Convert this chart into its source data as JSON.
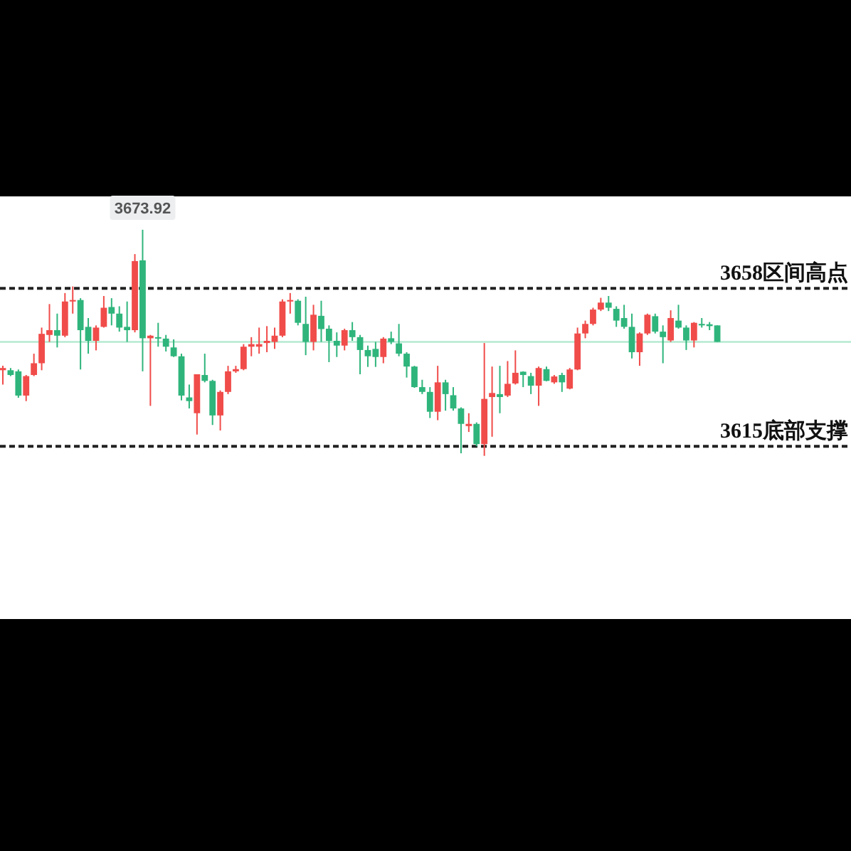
{
  "chart_data": {
    "type": "candlestick",
    "categories": [
      null,
      null,
      null,
      null,
      null,
      null,
      null,
      null,
      null,
      null,
      null,
      null,
      null,
      null,
      null,
      null,
      null,
      null,
      null,
      null,
      null,
      null,
      null,
      null,
      null,
      null,
      null,
      null,
      null,
      null,
      null,
      null,
      null,
      null,
      null,
      null,
      null,
      null,
      null,
      null,
      null,
      null,
      null,
      null,
      null,
      null,
      null,
      null,
      null,
      null,
      null,
      null,
      null,
      null,
      null,
      null,
      null,
      null,
      null,
      null,
      null,
      null,
      null,
      null,
      null,
      null,
      null,
      null,
      null,
      null,
      null,
      null,
      null,
      null,
      null,
      null,
      null,
      null,
      null,
      null,
      null,
      null,
      null,
      null,
      null,
      null,
      null,
      null,
      null,
      null,
      null,
      null,
      null
    ],
    "ohlc": [
      [
        3635.7,
        3636.9,
        3631.8,
        3636.3
      ],
      [
        3635.7,
        3636.3,
        3634.1,
        3634.4
      ],
      [
        3635.4,
        3635.9,
        3628.2,
        3628.8
      ],
      [
        3628.8,
        3634.4,
        3627.3,
        3634.1
      ],
      [
        3634.4,
        3640.2,
        3634.1,
        3637.6
      ],
      [
        3637.6,
        3647.3,
        3635.7,
        3645.6
      ],
      [
        3645.3,
        3653.7,
        3643.4,
        3646.6
      ],
      [
        3646.6,
        3651.1,
        3641.9,
        3645.1
      ],
      [
        3645.1,
        3656.7,
        3644.7,
        3654.4
      ],
      [
        3654.4,
        3658.5,
        3651.1,
        3654.8
      ],
      [
        3654.8,
        3655.3,
        3635.9,
        3646.6
      ],
      [
        3647.5,
        3649.9,
        3640.2,
        3643.7
      ],
      [
        3643.7,
        3647.9,
        3641.1,
        3647.3
      ],
      [
        3647.5,
        3655.9,
        3647.3,
        3652.7
      ],
      [
        3652.9,
        3655.3,
        3647.9,
        3651.1
      ],
      [
        3651.1,
        3653.1,
        3646.2,
        3647.3
      ],
      [
        3647.5,
        3654.4,
        3643.4,
        3646.6
      ],
      [
        3646.6,
        3667.3,
        3646.0,
        3665.4
      ],
      [
        3665.6,
        3673.92,
        3635.4,
        3644.4
      ],
      [
        3644.4,
        3645.3,
        3626.0,
        3645.1
      ],
      [
        3644.7,
        3648.6,
        3642.1,
        3644.3
      ],
      [
        3644.3,
        3645.3,
        3640.8,
        3642.1
      ],
      [
        3641.9,
        3644.1,
        3639.3,
        3639.5
      ],
      [
        3639.5,
        3640.2,
        3627.5,
        3628.8
      ],
      [
        3628.3,
        3631.8,
        3625.3,
        3627.3
      ],
      [
        3624.0,
        3634.6,
        3618.2,
        3634.6
      ],
      [
        3634.4,
        3640.2,
        3632.4,
        3632.8
      ],
      [
        3632.8,
        3633.1,
        3620.8,
        3623.4
      ],
      [
        3623.4,
        3630.2,
        3619.3,
        3629.8
      ],
      [
        3629.8,
        3636.9,
        3629.2,
        3635.4
      ],
      [
        3635.4,
        3636.9,
        3635.0,
        3636.0
      ],
      [
        3636.0,
        3642.8,
        3635.7,
        3642.1
      ],
      [
        3642.1,
        3644.7,
        3639.5,
        3642.8
      ],
      [
        3642.1,
        3647.3,
        3640.2,
        3642.8
      ],
      [
        3643.1,
        3647.7,
        3640.6,
        3643.7
      ],
      [
        3643.4,
        3647.3,
        3641.5,
        3645.1
      ],
      [
        3645.1,
        3655.0,
        3644.7,
        3654.4
      ],
      [
        3654.4,
        3656.7,
        3651.1,
        3654.8
      ],
      [
        3654.6,
        3655.0,
        3647.9,
        3648.6
      ],
      [
        3648.3,
        3655.7,
        3639.8,
        3643.4
      ],
      [
        3643.4,
        3653.5,
        3641.1,
        3650.8
      ],
      [
        3650.5,
        3654.6,
        3643.4,
        3646.9
      ],
      [
        3647.0,
        3647.9,
        3637.9,
        3643.7
      ],
      [
        3643.7,
        3646.0,
        3639.3,
        3642.4
      ],
      [
        3642.4,
        3647.0,
        3641.1,
        3646.6
      ],
      [
        3646.6,
        3648.8,
        3643.7,
        3644.7
      ],
      [
        3644.7,
        3645.3,
        3634.6,
        3641.2
      ],
      [
        3641.2,
        3642.4,
        3636.6,
        3639.5
      ],
      [
        3641.5,
        3643.4,
        3636.6,
        3639.3
      ],
      [
        3639.3,
        3644.7,
        3637.6,
        3644.3
      ],
      [
        3644.4,
        3646.2,
        3642.8,
        3643.4
      ],
      [
        3643.0,
        3648.3,
        3639.5,
        3640.2
      ],
      [
        3640.2,
        3640.6,
        3633.7,
        3636.7
      ],
      [
        3636.7,
        3636.9,
        3630.9,
        3631.1
      ],
      [
        3631.1,
        3633.1,
        3629.2,
        3629.8
      ],
      [
        3629.8,
        3631.1,
        3622.7,
        3624.4
      ],
      [
        3624.4,
        3636.9,
        3622.1,
        3632.4
      ],
      [
        3632.4,
        3633.1,
        3624.7,
        3629.2
      ],
      [
        3628.9,
        3631.1,
        3624.7,
        3625.3
      ],
      [
        3625.3,
        3625.6,
        3613.1,
        3621.1
      ],
      [
        3620.5,
        3624.0,
        3618.9,
        3621.1
      ],
      [
        3621.1,
        3621.5,
        3615.0,
        3615.6
      ],
      [
        3615.6,
        3643.1,
        3612.4,
        3627.9
      ],
      [
        3628.4,
        3636.7,
        3617.6,
        3629.5
      ],
      [
        3629.2,
        3636.9,
        3624.0,
        3628.4
      ],
      [
        3628.8,
        3638.2,
        3628.4,
        3632.0
      ],
      [
        3632.1,
        3641.1,
        3631.8,
        3635.0
      ],
      [
        3635.3,
        3635.4,
        3631.1,
        3634.4
      ],
      [
        3634.1,
        3635.0,
        3629.2,
        3631.5
      ],
      [
        3631.5,
        3636.7,
        3626.0,
        3636.3
      ],
      [
        3636.0,
        3636.7,
        3632.7,
        3632.8
      ],
      [
        3632.4,
        3634.4,
        3632.0,
        3634.0
      ],
      [
        3634.4,
        3635.0,
        3629.8,
        3632.4
      ],
      [
        3630.7,
        3636.3,
        3630.5,
        3635.9
      ],
      [
        3635.9,
        3647.3,
        3635.7,
        3645.7
      ],
      [
        3645.7,
        3649.2,
        3644.4,
        3648.3
      ],
      [
        3648.3,
        3652.7,
        3647.9,
        3652.2
      ],
      [
        3652.2,
        3655.4,
        3651.8,
        3654.1
      ],
      [
        3654.1,
        3655.9,
        3651.8,
        3652.7
      ],
      [
        3652.4,
        3653.1,
        3647.5,
        3649.2
      ],
      [
        3649.9,
        3653.5,
        3647.0,
        3647.5
      ],
      [
        3647.5,
        3651.1,
        3638.9,
        3640.6
      ],
      [
        3640.6,
        3646.0,
        3636.9,
        3645.7
      ],
      [
        3645.7,
        3651.1,
        3645.3,
        3650.8
      ],
      [
        3650.4,
        3651.1,
        3645.7,
        3646.2
      ],
      [
        3646.2,
        3647.9,
        3637.6,
        3644.7
      ],
      [
        3643.8,
        3652.0,
        3643.4,
        3649.9
      ],
      [
        3649.2,
        3653.5,
        3647.0,
        3647.3
      ],
      [
        3647.3,
        3647.9,
        3641.2,
        3643.8
      ],
      [
        3643.8,
        3648.8,
        3641.9,
        3648.6
      ],
      [
        3648.3,
        3649.9,
        3647.3,
        3647.9
      ],
      [
        3648.2,
        3648.8,
        3646.6,
        3647.7
      ],
      [
        3647.9,
        3647.9,
        3643.4,
        3643.4
      ]
    ],
    "colors": [
      "#f04c4a",
      "#2fb57c",
      "#2fb57c",
      "#f04c4a",
      "#f04c4a",
      "#f04c4a",
      "#f04c4a",
      "#2fb57c",
      "#f04c4a",
      "#f04c4a",
      "#2fb57c",
      "#2fb57c",
      "#f04c4a",
      "#f04c4a",
      "#2fb57c",
      "#2fb57c",
      "#2fb57c",
      "#f04c4a",
      "#2fb57c",
      "#f04c4a",
      "#2fb57c",
      "#2fb57c",
      "#2fb57c",
      "#2fb57c",
      "#2fb57c",
      "#f04c4a",
      "#2fb57c",
      "#2fb57c",
      "#f04c4a",
      "#f04c4a",
      "#f04c4a",
      "#f04c4a",
      "#f04c4a",
      "#f04c4a",
      "#f04c4a",
      "#f04c4a",
      "#f04c4a",
      "#f04c4a",
      "#2fb57c",
      "#2fb57c",
      "#f04c4a",
      "#2fb57c",
      "#2fb57c",
      "#2fb57c",
      "#f04c4a",
      "#2fb57c",
      "#2fb57c",
      "#2fb57c",
      "#2fb57c",
      "#f04c4a",
      "#2fb57c",
      "#2fb57c",
      "#2fb57c",
      "#2fb57c",
      "#2fb57c",
      "#2fb57c",
      "#f04c4a",
      "#2fb57c",
      "#2fb57c",
      "#2fb57c",
      "#f04c4a",
      "#2fb57c",
      "#f04c4a",
      "#f04c4a",
      "#2fb57c",
      "#f04c4a",
      "#f04c4a",
      "#2fb57c",
      "#2fb57c",
      "#f04c4a",
      "#2fb57c",
      "#f04c4a",
      "#2fb57c",
      "#f04c4a",
      "#f04c4a",
      "#f04c4a",
      "#f04c4a",
      "#f04c4a",
      "#2fb57c",
      "#2fb57c",
      "#2fb57c",
      "#2fb57c",
      "#f04c4a",
      "#f04c4a",
      "#2fb57c",
      "#2fb57c",
      "#f04c4a",
      "#2fb57c",
      "#2fb57c",
      "#f04c4a",
      "#2fb57c",
      "#2fb57c",
      "#2fb57c"
    ],
    "ylim": [
      3568,
      3683
    ],
    "ref_lines": [
      {
        "axis": "y",
        "value": 3658,
        "label": "3658区间高点",
        "color": "#222222",
        "line_style": "dashed"
      },
      {
        "axis": "y",
        "value": 3615,
        "label": "3615底部支撑",
        "color": "#222222",
        "line_style": "dashed"
      },
      {
        "axis": "y",
        "value": 3643.4,
        "color": "#b5ead0",
        "line_style": "solid"
      }
    ],
    "annotations": [
      {
        "text": "3673.92",
        "y": 3673.92
      }
    ]
  }
}
